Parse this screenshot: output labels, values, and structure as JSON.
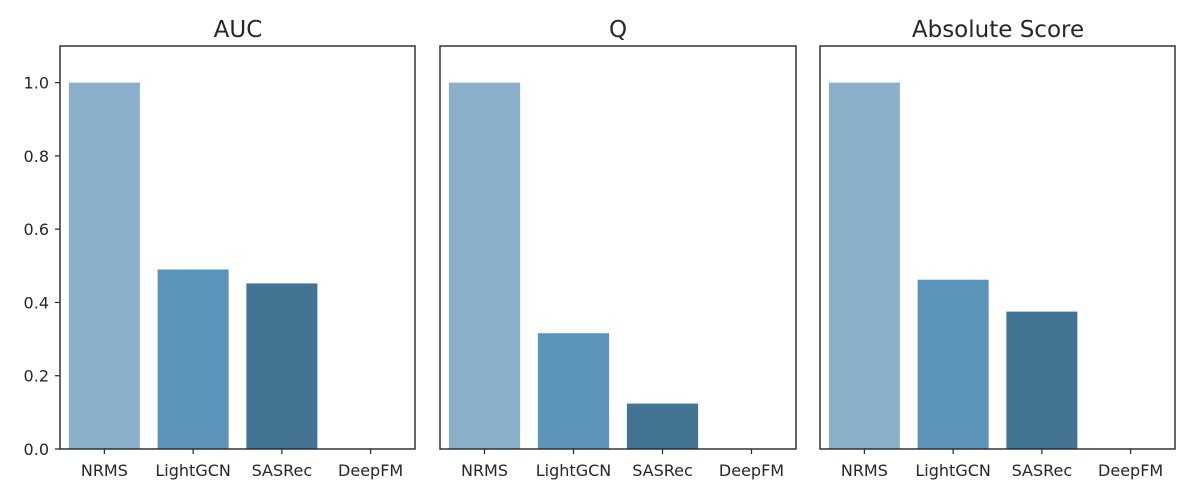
{
  "chart_data": [
    {
      "type": "bar",
      "title": "AUC",
      "categories": [
        "NRMS",
        "LightGCN",
        "SASRec",
        "DeepFM"
      ],
      "values": [
        1.0,
        0.49,
        0.452,
        0.0
      ],
      "ylim": [
        0,
        1.1
      ],
      "yticks": [
        "0.0",
        "0.2",
        "0.4",
        "0.6",
        "0.8",
        "1.0"
      ],
      "show_yticks": true
    },
    {
      "type": "bar",
      "title": "Q",
      "categories": [
        "NRMS",
        "LightGCN",
        "SASRec",
        "DeepFM"
      ],
      "values": [
        1.0,
        0.316,
        0.124,
        0.0
      ],
      "ylim": [
        0,
        1.1
      ],
      "show_yticks": false
    },
    {
      "type": "bar",
      "title": "Absolute Score",
      "categories": [
        "NRMS",
        "LightGCN",
        "SASRec",
        "DeepFM"
      ],
      "values": [
        1.0,
        0.462,
        0.375,
        0.0
      ],
      "ylim": [
        0,
        1.1
      ],
      "show_yticks": false
    }
  ],
  "colors": {
    "bars": [
      "#89afca",
      "#5b93b9",
      "#447493",
      "#2f5670"
    ],
    "axis": "#262626"
  }
}
